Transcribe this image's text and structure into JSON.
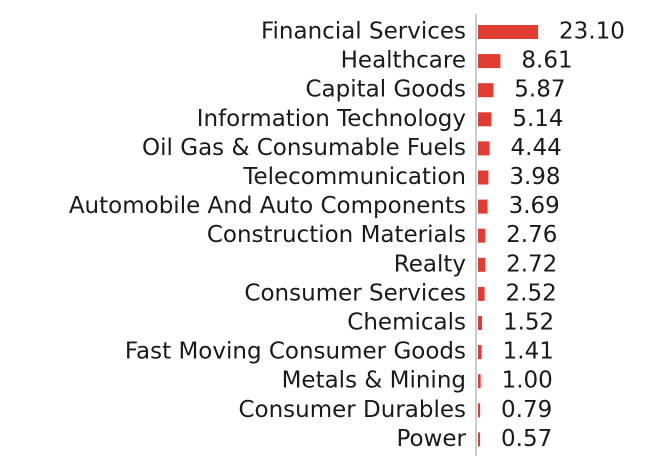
{
  "chart_data": {
    "type": "bar",
    "orientation": "horizontal",
    "categories": [
      "Financial Services",
      "Healthcare",
      "Capital Goods",
      "Information Technology",
      "Oil Gas & Consumable Fuels",
      "Telecommunication",
      "Automobile And Auto Components",
      "Construction Materials",
      "Realty",
      "Consumer Services",
      "Chemicals",
      "Fast Moving Consumer Goods",
      "Metals & Mining",
      "Consumer Durables",
      "Power"
    ],
    "values": [
      23.1,
      8.61,
      5.87,
      5.14,
      4.44,
      3.98,
      3.69,
      2.76,
      2.72,
      2.52,
      1.52,
      1.41,
      1.0,
      0.79,
      0.57
    ],
    "value_labels": [
      "23.10",
      "8.61",
      "5.87",
      "5.14",
      "4.44",
      "3.98",
      "3.69",
      "2.76",
      "2.72",
      "2.52",
      "1.52",
      "1.41",
      "1.00",
      "0.79",
      "0.57"
    ],
    "bar_color": "#e03c31",
    "axis_color": "#bbbbbb",
    "grid": false,
    "legend": "none",
    "title": "",
    "xlabel": "",
    "ylabel": ""
  }
}
